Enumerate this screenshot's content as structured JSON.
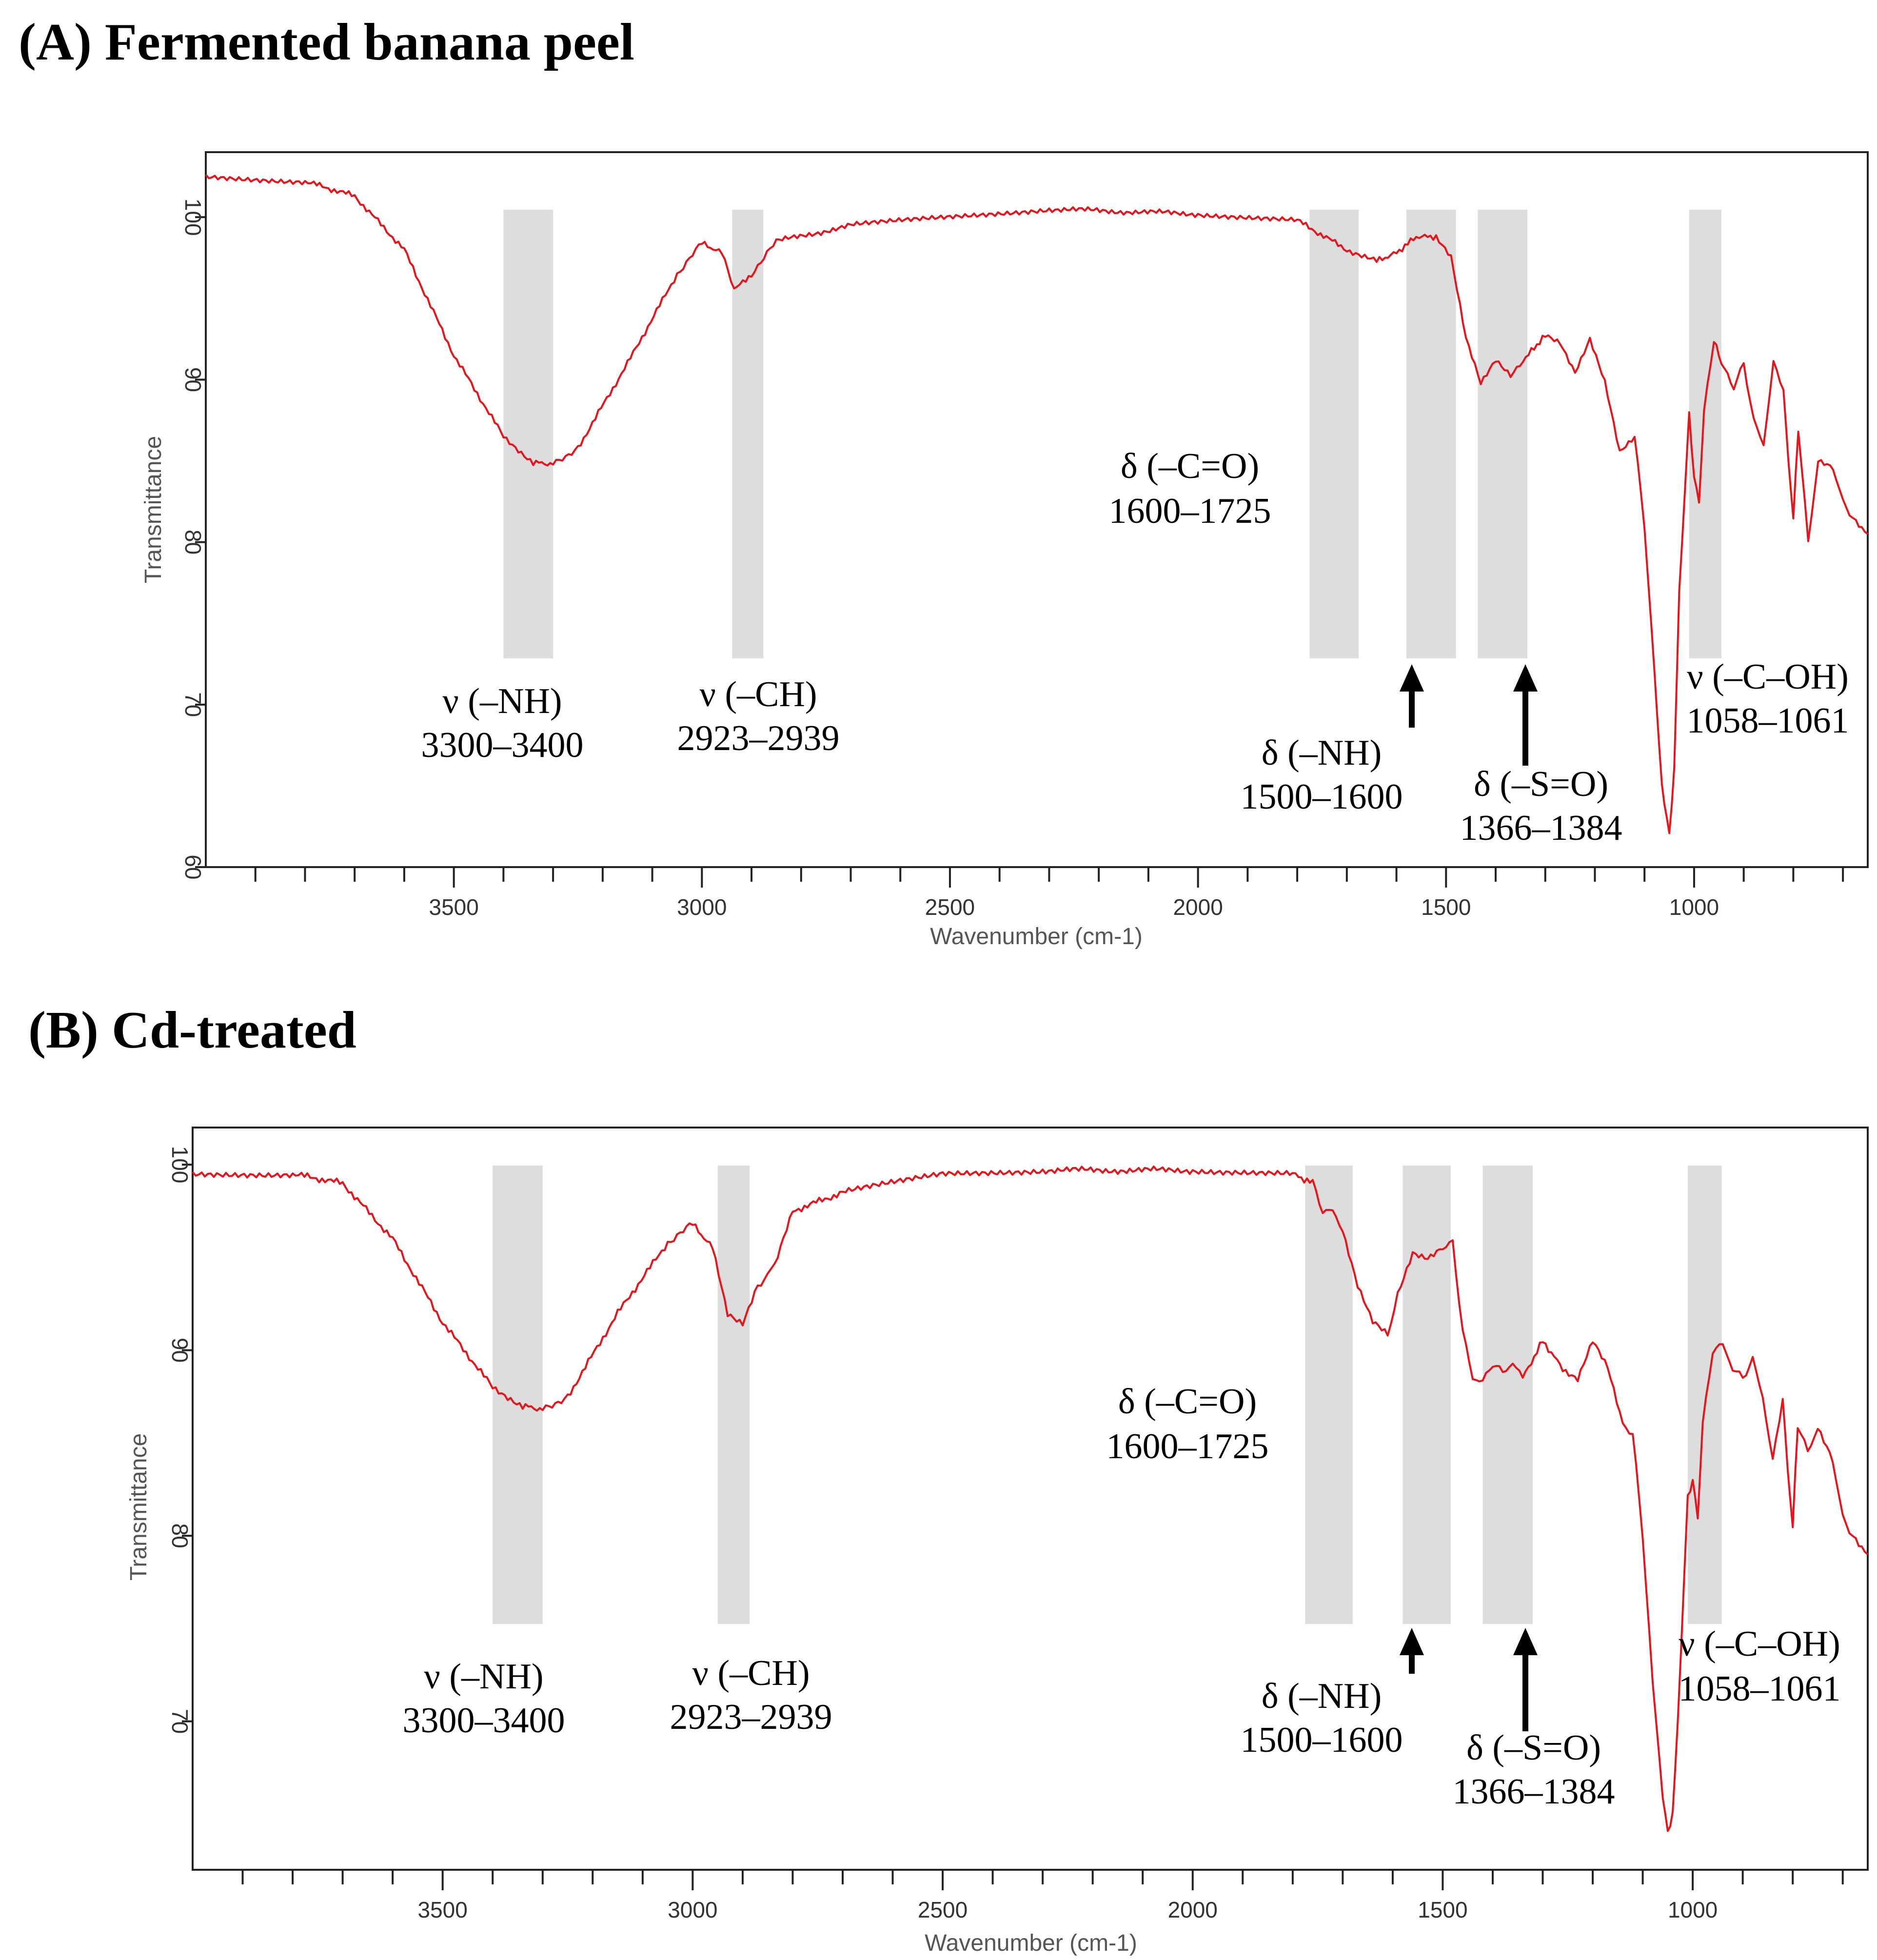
{
  "colors": {
    "spectrum": "#e8141b",
    "band": "#dddddd",
    "text": "#000000"
  },
  "chart_data": [
    {
      "type": "line",
      "panel_title": "(A) Fermented banana peel",
      "xlabel": "Wavenumber (cm-1)",
      "ylabel": "Transmittance",
      "xlim": [
        4000,
        650
      ],
      "ylim": [
        60,
        104
      ],
      "xticks": [
        3500,
        3000,
        2500,
        2000,
        1500,
        1000
      ],
      "yticks": [
        60,
        70,
        80,
        90,
        100
      ],
      "series": [
        {
          "name": "Fermented banana peel",
          "x": [
            4000,
            3800,
            3700,
            3600,
            3500,
            3400,
            3340,
            3300,
            3250,
            3150,
            3050,
            3000,
            2960,
            2935,
            2900,
            2850,
            2700,
            2500,
            2300,
            2000,
            1800,
            1700,
            1640,
            1600,
            1560,
            1520,
            1490,
            1460,
            1430,
            1400,
            1370,
            1345,
            1300,
            1270,
            1240,
            1210,
            1180,
            1150,
            1120,
            1100,
            1080,
            1065,
            1050,
            1040,
            1030,
            1010,
            1000,
            990,
            980,
            960,
            945,
            920,
            900,
            880,
            860,
            840,
            820,
            810,
            800,
            790,
            770,
            750,
            720,
            700,
            680,
            650
          ],
          "y": [
            102.5,
            102.2,
            101.3,
            98.0,
            91.5,
            86.5,
            84.9,
            84.8,
            85.8,
            91.0,
            96.5,
            98.4,
            97.8,
            95.5,
            96.5,
            98.5,
            99.5,
            100.0,
            100.5,
            100.2,
            99.8,
            98.0,
            97.3,
            97.8,
            98.8,
            98.8,
            97.5,
            92.5,
            89.8,
            91.3,
            90.3,
            91.2,
            92.7,
            92.3,
            90.5,
            92.5,
            89.8,
            85.5,
            86.5,
            81.0,
            72.0,
            65.0,
            62.0,
            66.0,
            77.0,
            87.8,
            84.0,
            82.5,
            88.0,
            92.5,
            91.0,
            89.5,
            91.0,
            87.5,
            86.0,
            91.0,
            89.5,
            85.0,
            81.5,
            87.0,
            80.0,
            85.0,
            84.5,
            82.5,
            81.5,
            80.5
          ]
        }
      ],
      "bands": [
        [
          3400,
          3300
        ],
        [
          2939,
          2876
        ],
        [
          1775,
          1676
        ],
        [
          1580,
          1480
        ],
        [
          1436,
          1336
        ],
        [
          1010,
          945
        ]
      ],
      "annotations": [
        {
          "symbol": "ν",
          "group": "(–NH)",
          "range": "3300–3400"
        },
        {
          "symbol": "ν",
          "group": "(–CH)",
          "range": "2923–2939"
        },
        {
          "symbol": "δ",
          "group": "(–C=O)",
          "range": "1600–1725"
        },
        {
          "symbol": "δ",
          "group": "(–NH)",
          "range": "1500–1600"
        },
        {
          "symbol": "δ",
          "group": "(–S=O)",
          "range": "1366–1384"
        },
        {
          "symbol": "ν",
          "group": "(–C–OH)",
          "range": "1058–1061"
        }
      ],
      "arrows_at": [
        1560,
        1330
      ]
    },
    {
      "type": "line",
      "panel_title": "(B) Cd-treated",
      "xlabel": "Wavenumber (cm-1)",
      "ylabel": "Transmittance",
      "xlim": [
        4000,
        650
      ],
      "ylim": [
        62,
        102
      ],
      "xticks": [
        3500,
        3000,
        2500,
        2000,
        1500,
        1000
      ],
      "yticks": [
        70,
        80,
        90,
        100
      ],
      "series": [
        {
          "name": "Cd-treated",
          "x": [
            4000,
            3800,
            3700,
            3600,
            3500,
            3400,
            3340,
            3300,
            3250,
            3150,
            3050,
            3000,
            2960,
            2930,
            2900,
            2870,
            2850,
            2830,
            2800,
            2700,
            2500,
            2300,
            2000,
            1800,
            1760,
            1740,
            1720,
            1700,
            1670,
            1640,
            1610,
            1590,
            1560,
            1530,
            1500,
            1480,
            1460,
            1440,
            1420,
            1400,
            1380,
            1360,
            1340,
            1300,
            1260,
            1230,
            1200,
            1170,
            1140,
            1120,
            1100,
            1080,
            1060,
            1050,
            1040,
            1030,
            1010,
            1000,
            990,
            980,
            960,
            940,
            920,
            900,
            880,
            860,
            840,
            820,
            810,
            800,
            790,
            770,
            750,
            720,
            700,
            680,
            650
          ],
          "y": [
            99.5,
            99.5,
            99.0,
            96.0,
            91.5,
            88.0,
            87.0,
            86.8,
            87.5,
            92.0,
            95.8,
            96.8,
            95.5,
            92.0,
            91.5,
            93.5,
            94.0,
            95.0,
            97.5,
            98.5,
            99.5,
            99.7,
            99.7,
            99.5,
            99.0,
            97.5,
            97.5,
            96.5,
            93.5,
            91.5,
            90.8,
            93.0,
            95.3,
            95.0,
            95.5,
            95.8,
            91.0,
            88.5,
            88.3,
            89.3,
            88.8,
            89.3,
            88.5,
            90.5,
            89.0,
            88.5,
            90.5,
            89.0,
            86.0,
            85.5,
            80.0,
            72.0,
            66.0,
            64.0,
            65.0,
            70.0,
            82.0,
            83.0,
            81.0,
            86.0,
            90.0,
            90.3,
            89.0,
            88.5,
            89.5,
            87.5,
            84.0,
            87.5,
            83.5,
            80.5,
            86.0,
            84.5,
            85.8,
            84.0,
            81.0,
            80.0,
            79.0
          ]
        }
      ],
      "bands": [
        [
          1775,
          1680
        ],
        [
          1580,
          1484
        ],
        [
          1420,
          1320
        ],
        [
          1010,
          942
        ]
      ],
      "band_a": [
        3400,
        3300
      ],
      "band_b": [
        2950,
        2886
      ],
      "annotations": [
        {
          "symbol": "ν",
          "group": "(–NH)",
          "range": "3300–3400"
        },
        {
          "symbol": "ν",
          "group": "(–CH)",
          "range": "2923–2939"
        },
        {
          "symbol": "δ",
          "group": "(–C=O)",
          "range": "1600–1725"
        },
        {
          "symbol": "δ",
          "group": "(–NH)",
          "range": "1500–1600"
        },
        {
          "symbol": "δ",
          "group": "(–S=O)",
          "range": "1366–1384"
        },
        {
          "symbol": "ν",
          "group": "(–C–OH)",
          "range": "1058–1061"
        }
      ],
      "arrows_at": [
        1560,
        1330
      ]
    }
  ]
}
